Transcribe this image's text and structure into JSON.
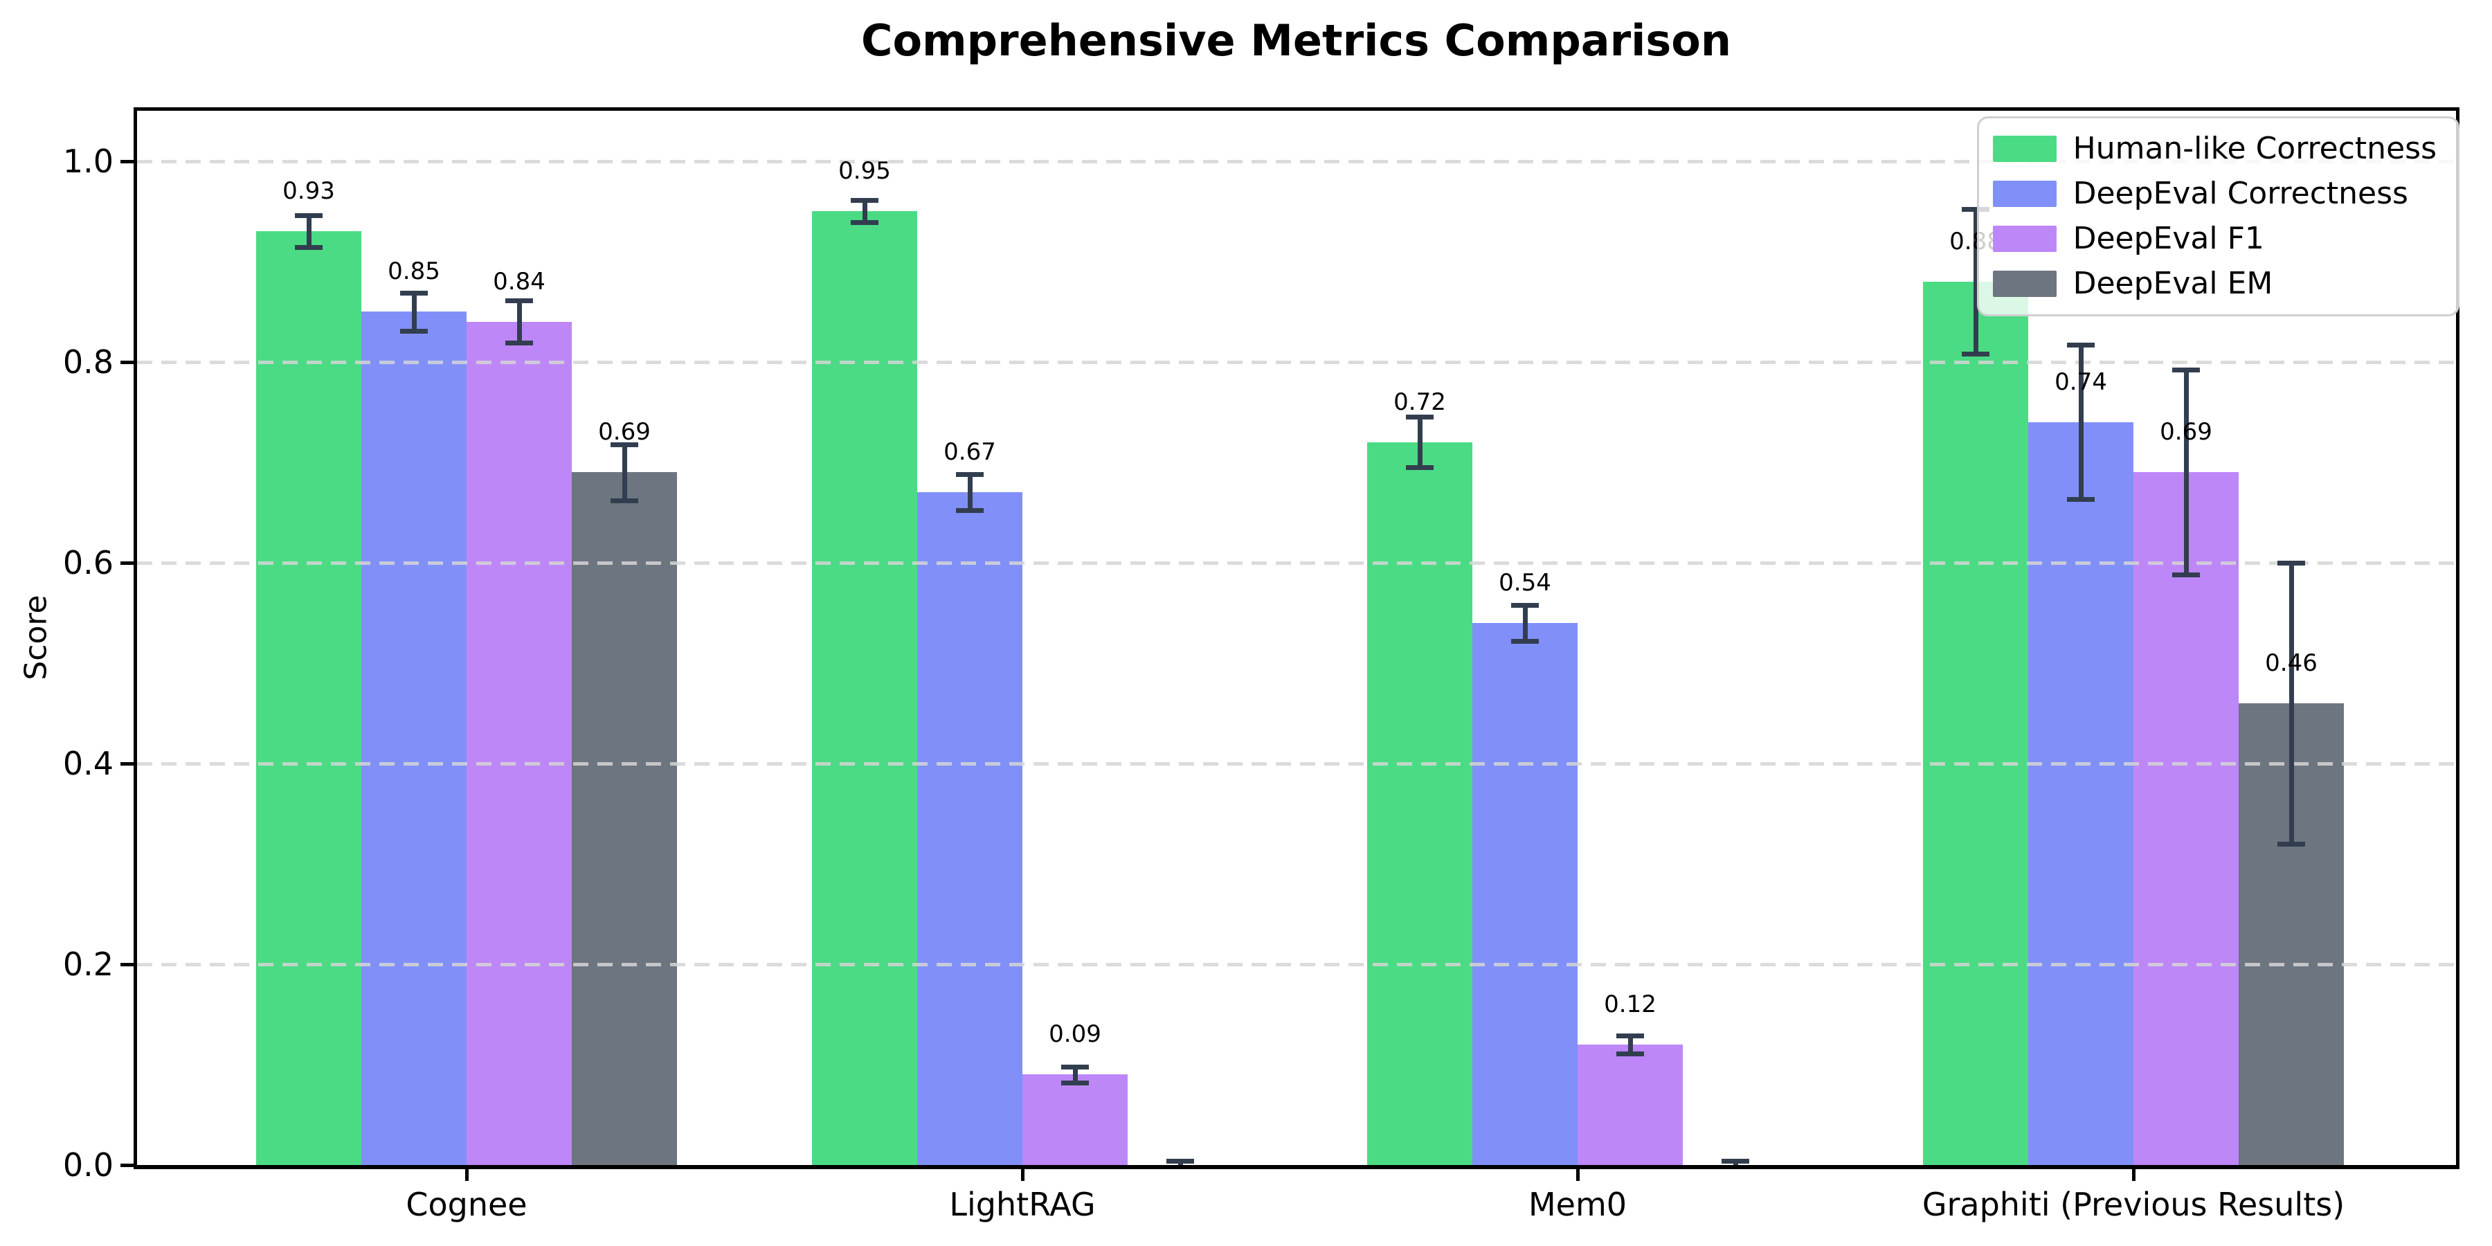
{
  "title": "Comprehensive Metrics Comparison",
  "chart_data": {
    "type": "bar",
    "title": "Comprehensive Metrics Comparison",
    "xlabel": "",
    "ylabel": "Score",
    "ylim": [
      0,
      1.05
    ],
    "yticks": [
      0.0,
      0.2,
      0.4,
      0.6,
      0.8,
      1.0
    ],
    "ytick_labels": [
      "0.0",
      "0.2",
      "0.4",
      "0.6",
      "0.8",
      "1.0"
    ],
    "grid": "horizontal dashed",
    "grid_color": "#d5d5d5",
    "legend_position": "upper right",
    "error_bar_color": "#323e4f",
    "categories": [
      "Cognee",
      "LightRAG",
      "Mem0",
      "Graphiti (Previous Results)"
    ],
    "series": [
      {
        "name": "Human-like Correctness",
        "color": "#4bdb84",
        "values": [
          0.93,
          0.95,
          0.72,
          0.88
        ],
        "labels": [
          "0.93",
          "0.95",
          "0.72",
          "0.88"
        ],
        "errors": [
          0.016,
          0.011,
          0.025,
          0.072
        ]
      },
      {
        "name": "DeepEval Correctness",
        "color": "#8190f8",
        "values": [
          0.85,
          0.67,
          0.54,
          0.74
        ],
        "labels": [
          "0.85",
          "0.67",
          "0.54",
          "0.74"
        ],
        "errors": [
          0.019,
          0.018,
          0.018,
          0.077
        ]
      },
      {
        "name": "DeepEval F1",
        "color": "#bd87f8",
        "values": [
          0.84,
          0.09,
          0.12,
          0.69
        ],
        "labels": [
          "0.84",
          "0.09",
          "0.12",
          "0.69"
        ],
        "errors": [
          0.021,
          0.008,
          0.009,
          0.102
        ]
      },
      {
        "name": "DeepEval EM",
        "color": "#6d7580",
        "values": [
          0.69,
          0.0,
          0.0,
          0.46
        ],
        "labels": [
          "0.69",
          "",
          "",
          "0.46"
        ],
        "errors": [
          0.028,
          0.004,
          0.004,
          0.14
        ]
      }
    ]
  }
}
